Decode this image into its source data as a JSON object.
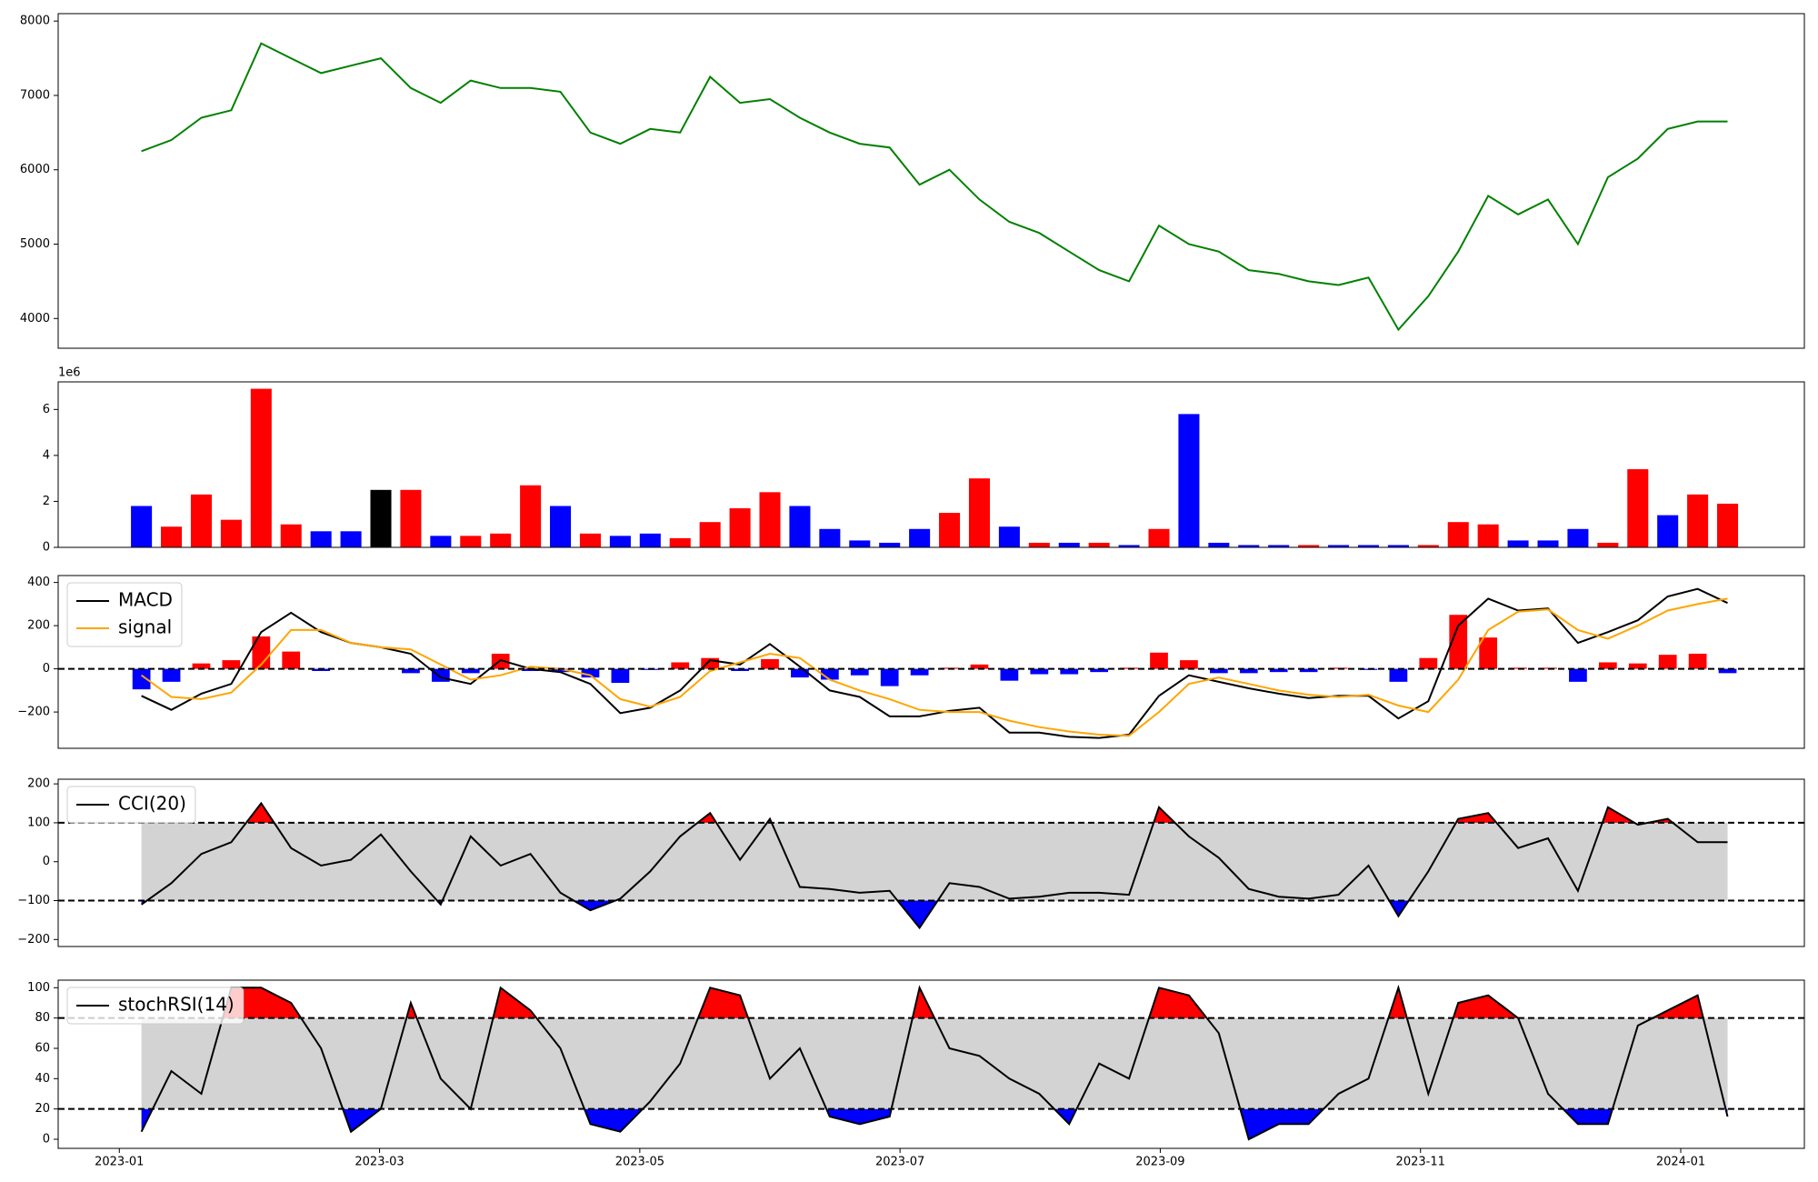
{
  "chart_data": [
    {
      "type": "line",
      "xlim": [
        -0.47,
        12.95
      ],
      "x": [
        0.17,
        0.4,
        0.63,
        0.86,
        1.09,
        1.32,
        1.55,
        1.78,
        2.01,
        2.24,
        2.47,
        2.7,
        2.93,
        3.16,
        3.39,
        3.62,
        3.85,
        4.08,
        4.31,
        4.54,
        4.77,
        5.0,
        5.23,
        5.46,
        5.69,
        5.92,
        6.15,
        6.38,
        6.61,
        6.84,
        7.07,
        7.3,
        7.53,
        7.76,
        7.99,
        8.22,
        8.45,
        8.68,
        8.91,
        9.14,
        9.37,
        9.6,
        9.83,
        10.06,
        10.29,
        10.52,
        10.75,
        10.98,
        11.21,
        11.44,
        11.67,
        11.9,
        12.13,
        12.36
      ],
      "ylim": [
        3600,
        8100
      ],
      "yticks": [
        4000,
        5000,
        6000,
        7000,
        8000
      ],
      "series": [
        {
          "color": "#008000",
          "values": [
            6250,
            6400,
            6700,
            6800,
            7700,
            7500,
            7300,
            7400,
            7500,
            7100,
            6900,
            7200,
            7100,
            7100,
            7050,
            6500,
            6350,
            6550,
            6500,
            7250,
            6900,
            6950,
            6700,
            6500,
            6350,
            6300,
            5800,
            6000,
            5600,
            5300,
            5150,
            4900,
            4650,
            4500,
            5250,
            5000,
            4900,
            4650,
            4600,
            4500,
            4450,
            4550,
            3850,
            4300,
            4900,
            5650,
            5400,
            5600,
            5000,
            5900,
            6150,
            6550,
            6650,
            6650
          ]
        }
      ]
    },
    {
      "type": "bar",
      "xlim": [
        -0.47,
        12.95
      ],
      "x": [
        0.17,
        0.4,
        0.63,
        0.86,
        1.09,
        1.32,
        1.55,
        1.78,
        2.01,
        2.24,
        2.47,
        2.7,
        2.93,
        3.16,
        3.39,
        3.62,
        3.85,
        4.08,
        4.31,
        4.54,
        4.77,
        5.0,
        5.23,
        5.46,
        5.69,
        5.92,
        6.15,
        6.38,
        6.61,
        6.84,
        7.07,
        7.3,
        7.53,
        7.76,
        7.99,
        8.22,
        8.45,
        8.68,
        8.91,
        9.14,
        9.37,
        9.6,
        9.83,
        10.06,
        10.29,
        10.52,
        10.75,
        10.98,
        11.21,
        11.44,
        11.67,
        11.9,
        12.13,
        12.36
      ],
      "ylim": [
        0,
        7.2
      ],
      "yticks": [
        0,
        2,
        4,
        6
      ],
      "y_offset_label": "1e6",
      "values": [
        1.8,
        0.9,
        2.3,
        1.2,
        6.9,
        1.0,
        0.7,
        0.7,
        2.5,
        2.5,
        0.5,
        0.5,
        0.6,
        2.7,
        1.8,
        0.6,
        0.5,
        0.6,
        0.4,
        1.1,
        1.7,
        2.4,
        1.8,
        0.8,
        0.3,
        0.2,
        0.8,
        1.5,
        3.0,
        0.9,
        0.2,
        0.2,
        0.2,
        0.1,
        0.8,
        5.8,
        0.2,
        0.1,
        0.1,
        0.1,
        0.1,
        0.1,
        0.1,
        0.1,
        1.1,
        1.0,
        0.3,
        0.3,
        0.8,
        0.2,
        3.4,
        1.4,
        2.3,
        1.9
      ],
      "colors": [
        "blue",
        "red",
        "red",
        "red",
        "red",
        "red",
        "blue",
        "blue",
        "black",
        "red",
        "blue",
        "red",
        "red",
        "red",
        "blue",
        "red",
        "blue",
        "blue",
        "red",
        "red",
        "red",
        "red",
        "blue",
        "blue",
        "blue",
        "blue",
        "blue",
        "red",
        "red",
        "blue",
        "red",
        "blue",
        "red",
        "blue",
        "red",
        "blue",
        "blue",
        "blue",
        "blue",
        "red",
        "blue",
        "blue",
        "blue",
        "red",
        "red",
        "red",
        "blue",
        "blue",
        "blue",
        "red",
        "red",
        "blue",
        "red",
        "red"
      ]
    },
    {
      "type": "line",
      "xlim": [
        -0.47,
        12.95
      ],
      "x": [
        0.17,
        0.4,
        0.63,
        0.86,
        1.09,
        1.32,
        1.55,
        1.78,
        2.01,
        2.24,
        2.47,
        2.7,
        2.93,
        3.16,
        3.39,
        3.62,
        3.85,
        4.08,
        4.31,
        4.54,
        4.77,
        5.0,
        5.23,
        5.46,
        5.69,
        5.92,
        6.15,
        6.38,
        6.61,
        6.84,
        7.07,
        7.3,
        7.53,
        7.76,
        7.99,
        8.22,
        8.45,
        8.68,
        8.91,
        9.14,
        9.37,
        9.6,
        9.83,
        10.06,
        10.29,
        10.52,
        10.75,
        10.98,
        11.21,
        11.44,
        11.67,
        11.9,
        12.13,
        12.36
      ],
      "ylim": [
        -368,
        432
      ],
      "yticks": [
        {
          "value": -200,
          "label": "−200"
        },
        0,
        200,
        400
      ],
      "hlines": [
        0
      ],
      "legend": "upper left",
      "histogram": {
        "positive_color": "red",
        "negative_color": "blue",
        "values": [
          -95,
          -60,
          25,
          40,
          150,
          80,
          -10,
          0,
          0,
          -20,
          -60,
          -20,
          70,
          -10,
          -15,
          -40,
          -65,
          -5,
          30,
          50,
          -10,
          45,
          -40,
          -50,
          -30,
          -80,
          -30,
          5,
          20,
          -55,
          -25,
          -25,
          -15,
          5,
          75,
          40,
          -20,
          -20,
          -15,
          -15,
          5,
          -5,
          -60,
          50,
          250,
          145,
          5,
          5,
          -60,
          30,
          25,
          65,
          70,
          -20
        ]
      },
      "series": [
        {
          "name": "MACD",
          "color": "#000000",
          "values": [
            -125,
            -190,
            -115,
            -70,
            170,
            260,
            170,
            120,
            100,
            70,
            -40,
            -70,
            40,
            0,
            -15,
            -70,
            -205,
            -180,
            -100,
            40,
            20,
            115,
            10,
            -100,
            -130,
            -220,
            -220,
            -195,
            -180,
            -295,
            -295,
            -315,
            -320,
            -305,
            -125,
            -30,
            -60,
            -90,
            -115,
            -135,
            -125,
            -125,
            -230,
            -150,
            200,
            325,
            270,
            280,
            120,
            170,
            225,
            335,
            370,
            305
          ]
        },
        {
          "name": "signal",
          "color": "#ffa500",
          "values": [
            -30,
            -130,
            -140,
            -110,
            20,
            180,
            180,
            120,
            100,
            90,
            20,
            -50,
            -30,
            10,
            0,
            -30,
            -140,
            -175,
            -130,
            -10,
            30,
            70,
            50,
            -50,
            -100,
            -140,
            -190,
            -200,
            -200,
            -240,
            -270,
            -290,
            -305,
            -310,
            -200,
            -70,
            -40,
            -70,
            -100,
            -120,
            -130,
            -120,
            -170,
            -200,
            -50,
            180,
            265,
            275,
            180,
            140,
            200,
            270,
            300,
            325
          ]
        }
      ]
    },
    {
      "type": "line",
      "xlim": [
        -0.47,
        12.95
      ],
      "x": [
        0.17,
        0.4,
        0.63,
        0.86,
        1.09,
        1.32,
        1.55,
        1.78,
        2.01,
        2.24,
        2.47,
        2.7,
        2.93,
        3.16,
        3.39,
        3.62,
        3.85,
        4.08,
        4.31,
        4.54,
        4.77,
        5.0,
        5.23,
        5.46,
        5.69,
        5.92,
        6.15,
        6.38,
        6.61,
        6.84,
        7.07,
        7.3,
        7.53,
        7.76,
        7.99,
        8.22,
        8.45,
        8.68,
        8.91,
        9.14,
        9.37,
        9.6,
        9.83,
        10.06,
        10.29,
        10.52,
        10.75,
        10.98,
        11.21,
        11.44,
        11.67,
        11.9,
        12.13,
        12.36
      ],
      "ylim": [
        -218,
        212
      ],
      "yticks": [
        {
          "value": -200,
          "label": "−200"
        },
        {
          "value": -100,
          "label": "−100"
        },
        0,
        100,
        200
      ],
      "hlines": [
        100,
        -100
      ],
      "band_color": "#d3d3d3",
      "above_color": "red",
      "below_color": "blue",
      "legend": "upper left",
      "series": [
        {
          "name": "CCI(20)",
          "color": "#000000",
          "values": [
            -110,
            -55,
            20,
            50,
            150,
            35,
            -10,
            5,
            70,
            -25,
            -110,
            65,
            -10,
            20,
            -80,
            -125,
            -95,
            -25,
            65,
            125,
            5,
            110,
            -65,
            -70,
            -80,
            -75,
            -170,
            -55,
            -65,
            -95,
            -90,
            -80,
            -80,
            -85,
            140,
            65,
            10,
            -70,
            -90,
            -95,
            -85,
            -10,
            -140,
            -25,
            110,
            125,
            35,
            60,
            -75,
            140,
            95,
            110,
            50,
            50
          ]
        }
      ]
    },
    {
      "type": "line",
      "xlim": [
        -0.47,
        12.95
      ],
      "x": [
        0.17,
        0.4,
        0.63,
        0.86,
        1.09,
        1.32,
        1.55,
        1.78,
        2.01,
        2.24,
        2.47,
        2.7,
        2.93,
        3.16,
        3.39,
        3.62,
        3.85,
        4.08,
        4.31,
        4.54,
        4.77,
        5.0,
        5.23,
        5.46,
        5.69,
        5.92,
        6.15,
        6.38,
        6.61,
        6.84,
        7.07,
        7.3,
        7.53,
        7.76,
        7.99,
        8.22,
        8.45,
        8.68,
        8.91,
        9.14,
        9.37,
        9.6,
        9.83,
        10.06,
        10.29,
        10.52,
        10.75,
        10.98,
        11.21,
        11.44,
        11.67,
        11.9,
        12.13,
        12.36
      ],
      "ylim": [
        -6,
        105
      ],
      "yticks": [
        0,
        20,
        40,
        60,
        80,
        100
      ],
      "xticks": [
        {
          "value": 0,
          "label": "2023-01"
        },
        {
          "value": 2,
          "label": "2023-03"
        },
        {
          "value": 4,
          "label": "2023-05"
        },
        {
          "value": 6,
          "label": "2023-07"
        },
        {
          "value": 8,
          "label": "2023-09"
        },
        {
          "value": 10,
          "label": "2023-11"
        },
        {
          "value": 12,
          "label": "2024-01"
        }
      ],
      "hlines": [
        80,
        20
      ],
      "band_color": "#d3d3d3",
      "above_color": "red",
      "below_color": "blue",
      "legend": "upper left",
      "series": [
        {
          "name": "stochRSI(14)",
          "color": "#000000",
          "values": [
            5,
            45,
            30,
            100,
            100,
            90,
            60,
            5,
            20,
            90,
            40,
            20,
            100,
            85,
            60,
            10,
            5,
            25,
            50,
            100,
            95,
            40,
            60,
            15,
            10,
            15,
            100,
            60,
            55,
            40,
            30,
            10,
            50,
            40,
            100,
            95,
            70,
            0,
            10,
            10,
            30,
            40,
            100,
            30,
            90,
            95,
            80,
            30,
            10,
            10,
            75,
            85,
            95,
            15
          ]
        }
      ]
    }
  ]
}
